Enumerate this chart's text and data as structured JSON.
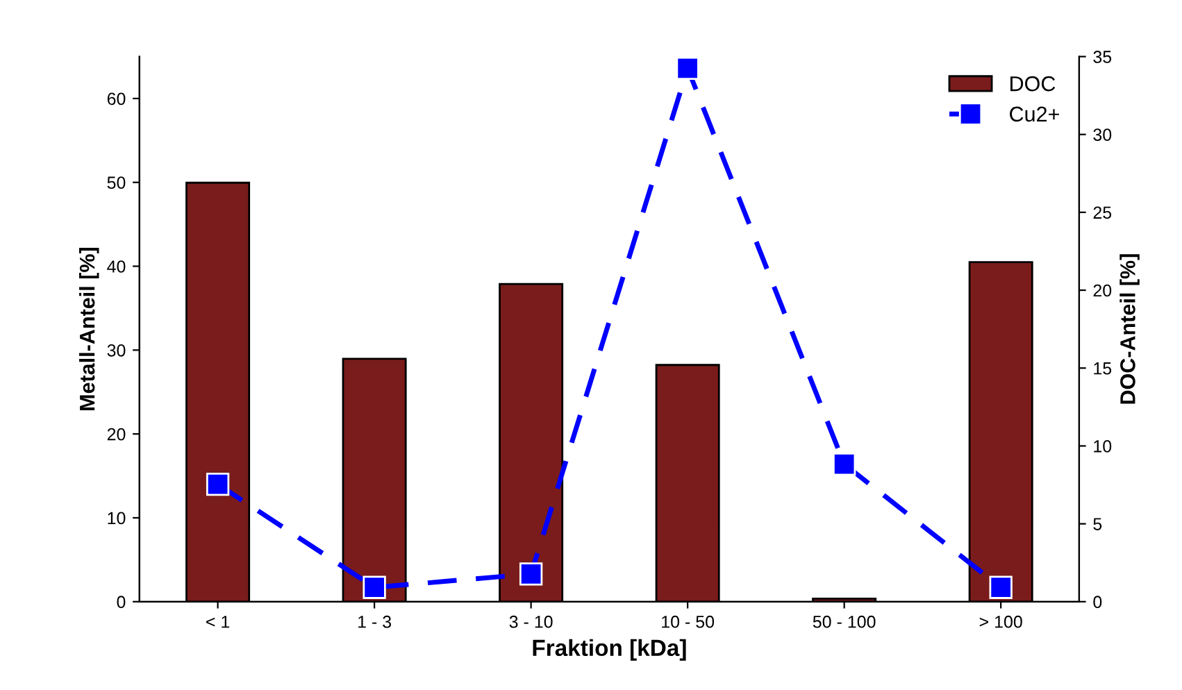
{
  "chart_data": {
    "type": "bar",
    "xlabel": "Fraktion [kDa]",
    "ylabel": "Metall-Anteil [%]",
    "y2label": "DOC-Anteil [%]",
    "categories": [
      "< 1",
      "1 - 3",
      "3 - 10",
      "10 - 50",
      "50 - 100",
      "> 100"
    ],
    "series": [
      {
        "name": "DOC",
        "axis": "y2",
        "color": "#7a1c1c",
        "values": [
          26.9,
          15.6,
          20.4,
          15.2,
          0.2,
          21.8
        ]
      },
      {
        "name": "Cu2+",
        "type": "line",
        "axis": "y",
        "color": "#0000ff",
        "marker": "square",
        "line_style": "dashed",
        "values": [
          14.0,
          1.7,
          3.3,
          63.6,
          16.4,
          1.7
        ]
      }
    ],
    "ylim": [
      0,
      65
    ],
    "yticks": [
      0,
      10,
      20,
      30,
      40,
      50,
      60
    ],
    "y2lim": [
      0,
      35
    ],
    "y2ticks": [
      0,
      5,
      10,
      15,
      20,
      25,
      30,
      35
    ],
    "grid": false,
    "legend": "top right"
  }
}
